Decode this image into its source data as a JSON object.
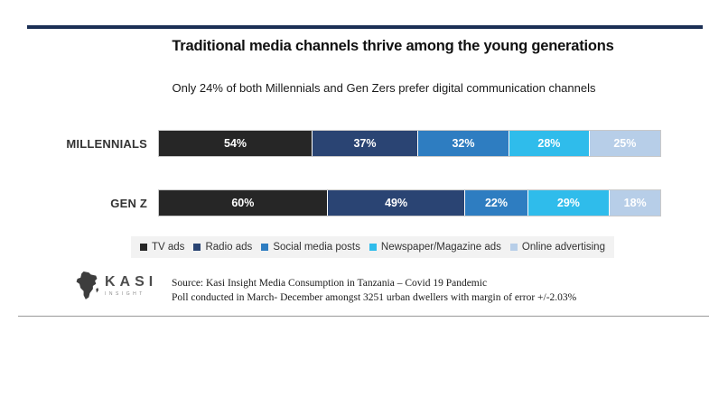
{
  "header": {
    "title": "Traditional media channels thrive among the young generations",
    "subtitle": "Only 24% of both Millennials and Gen Zers prefer digital communication channels"
  },
  "chart_data": {
    "type": "bar",
    "orientation": "horizontal",
    "stacked": true,
    "normalized_to_full_width": true,
    "categories": [
      "MILLENNIALS",
      "GEN Z"
    ],
    "series": [
      {
        "name": "TV ads",
        "color": "#262626",
        "values": [
          54,
          60
        ]
      },
      {
        "name": "Radio ads",
        "color": "#2a4473",
        "values": [
          37,
          49
        ]
      },
      {
        "name": "Social media posts",
        "color": "#2e7dc1",
        "values": [
          32,
          22
        ]
      },
      {
        "name": "Newspaper/Magazine ads",
        "color": "#2fbceb",
        "values": [
          28,
          29
        ]
      },
      {
        "name": "Online advertising",
        "color": "#b7cee8",
        "values": [
          25,
          18
        ]
      }
    ],
    "data_label_format": "{value}%",
    "data_label_color": "#ffffff",
    "legend_position": "bottom",
    "axes": "none"
  },
  "footer": {
    "logo": {
      "brand": "KASI",
      "sub": "INSIGHT",
      "icon": "africa-map"
    },
    "source_line1": "Source: Kasi Insight Media Consumption in Tanzania – Covid 19 Pandemic",
    "source_line2": "Poll conducted in March- December amongst 3251 urban dwellers with margin of error +/-2.03%"
  },
  "style": {
    "top_rule_color": "#1b2f55",
    "bottom_rule_color": "#999999",
    "legend_background": "#f2f2f2"
  }
}
